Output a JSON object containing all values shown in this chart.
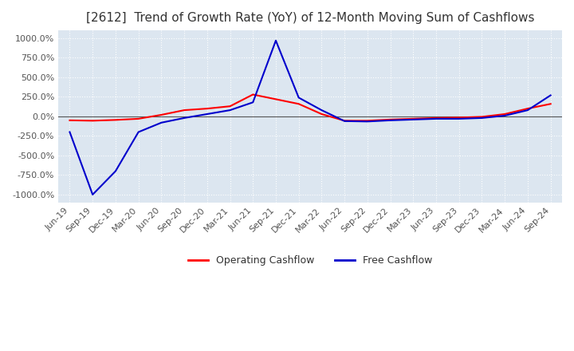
{
  "title": "[2612]  Trend of Growth Rate (YoY) of 12-Month Moving Sum of Cashflows",
  "title_fontsize": 11,
  "ylim": [
    -1100,
    1100
  ],
  "yticks": [
    -1000,
    -750,
    -500,
    -250,
    0,
    250,
    500,
    750,
    1000
  ],
  "background_color": "#ffffff",
  "plot_bg_color": "#dce6f0",
  "grid_color": "#ffffff",
  "legend_labels": [
    "Operating Cashflow",
    "Free Cashflow"
  ],
  "legend_colors": [
    "#ff0000",
    "#0000cc"
  ],
  "x_labels": [
    "Jun-19",
    "Sep-19",
    "Dec-19",
    "Mar-20",
    "Jun-20",
    "Sep-20",
    "Dec-20",
    "Mar-21",
    "Jun-21",
    "Sep-21",
    "Dec-21",
    "Mar-22",
    "Jun-22",
    "Sep-22",
    "Dec-22",
    "Mar-23",
    "Jun-23",
    "Sep-23",
    "Dec-23",
    "Mar-24",
    "Jun-24",
    "Sep-24"
  ],
  "operating_cashflow": [
    -50,
    -55,
    -45,
    -30,
    20,
    80,
    100,
    130,
    280,
    220,
    160,
    30,
    -55,
    -55,
    -40,
    -30,
    -20,
    -15,
    -5,
    30,
    100,
    160
  ],
  "free_cashflow": [
    -200,
    -1000,
    -700,
    -200,
    -80,
    -20,
    30,
    80,
    180,
    970,
    240,
    80,
    -60,
    -65,
    -50,
    -40,
    -30,
    -30,
    -20,
    10,
    80,
    270
  ]
}
